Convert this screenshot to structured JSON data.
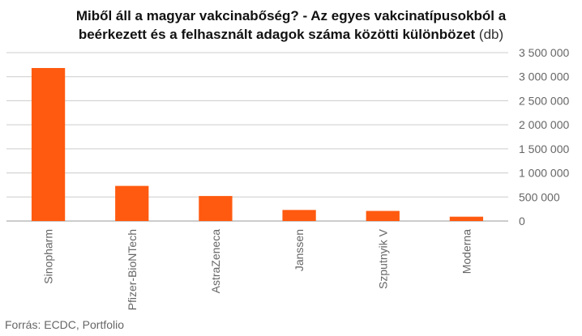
{
  "chart_data": {
    "type": "bar",
    "title_line1": "Miből áll a magyar vakcinabőség? - Az egyes vakcinatípusokból a",
    "title_line2": "beérkezett és a felhasznált adagok száma közötti különbözet",
    "title_unit": "(db)",
    "categories": [
      "Sinopharm",
      "Pfizer-BioNTech",
      "AstraZeneca",
      "Janssen",
      "Szputnyik V",
      "Moderna"
    ],
    "values": [
      3180000,
      730000,
      520000,
      230000,
      210000,
      90000
    ],
    "ylim": [
      0,
      3500000
    ],
    "yticks": [
      0,
      500000,
      1000000,
      1500000,
      2000000,
      2500000,
      3000000,
      3500000
    ],
    "ytick_labels": [
      "0",
      "500 000",
      "1 000 000",
      "1 500 000",
      "2 000 000",
      "2 500 000",
      "3 000 000",
      "3 500 000"
    ],
    "y_axis_position": "right",
    "grid": true,
    "bar_color": "#FF5A0F",
    "grid_color": "#cccccc"
  },
  "source": "Forrás: ECDC, Portfolio"
}
